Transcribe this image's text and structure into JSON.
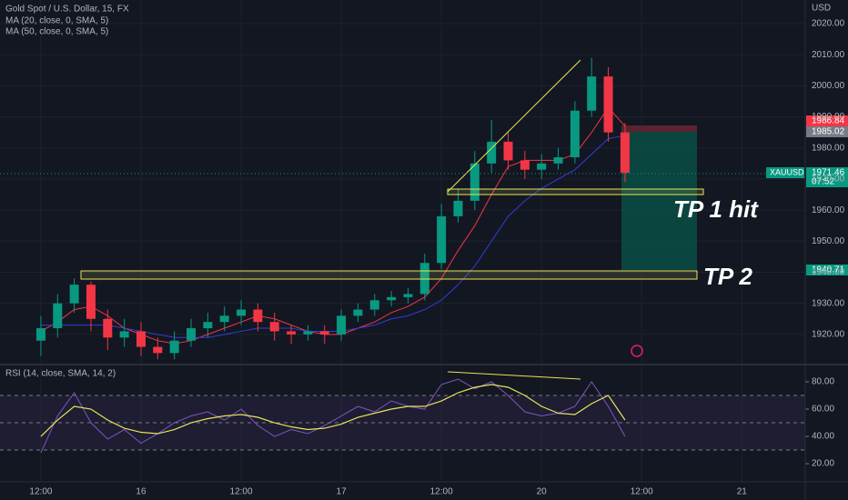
{
  "header": {
    "symbol": "Gold Spot / U.S. Dollar, 15, FX",
    "ma20": "MA (20, close, 0, SMA, 5)",
    "ma50": "MA (50, close, 0, SMA, 5)",
    "currency": "USD"
  },
  "price_labels": {
    "stop": "1986.84",
    "entry": "1985.02",
    "symbol": "XAUUSD",
    "last": "1971.46",
    "countdown": "07:52",
    "target": "1940.71"
  },
  "annotations": {
    "tp1": "TP 1 hit",
    "tp2": "TP 2"
  },
  "chart_data": [
    {
      "type": "candlestick",
      "up_color": "#089981",
      "down_color": "#f23645",
      "x": [
        12,
        14,
        16,
        18,
        20,
        22,
        24,
        26,
        28,
        30,
        32,
        34,
        36,
        38,
        40,
        42,
        44,
        46,
        48,
        50,
        52,
        54,
        56,
        58,
        60,
        62,
        64,
        66,
        68,
        70,
        72,
        74,
        76,
        78,
        80,
        82
      ],
      "open": [
        1918,
        1922,
        1930,
        1936,
        1925,
        1919,
        1921,
        1916,
        1914,
        1918,
        1922,
        1924,
        1926,
        1928,
        1924,
        1921,
        1920,
        1921,
        1920,
        1926,
        1928,
        1931,
        1932,
        1933,
        1943,
        1958,
        1963,
        1975,
        1982,
        1976,
        1973,
        1975,
        1977,
        1992,
        2003,
        1985
      ],
      "high": [
        1926,
        1933,
        1938,
        1937,
        1928,
        1925,
        1924,
        1919,
        1921,
        1925,
        1927,
        1929,
        1931,
        1930,
        1927,
        1923,
        1923,
        1923,
        1928,
        1930,
        1933,
        1934,
        1935,
        1946,
        1962,
        1967,
        1979,
        1989,
        1985,
        1979,
        1978,
        1980,
        1995,
        2009,
        2006,
        1988
      ],
      "low": [
        1913,
        1919,
        1927,
        1921,
        1915,
        1916,
        1913,
        1912,
        1912,
        1916,
        1919,
        1921,
        1923,
        1921,
        1918,
        1917,
        1918,
        1917,
        1918,
        1924,
        1926,
        1929,
        1930,
        1931,
        1941,
        1956,
        1960,
        1972,
        1973,
        1970,
        1970,
        1973,
        1975,
        1990,
        1982,
        1969
      ],
      "close": [
        1922,
        1930,
        1936,
        1925,
        1919,
        1921,
        1916,
        1914,
        1918,
        1922,
        1924,
        1926,
        1928,
        1924,
        1921,
        1920,
        1921,
        1920,
        1926,
        1928,
        1931,
        1932,
        1933,
        1943,
        1958,
        1963,
        1975,
        1982,
        1976,
        1973,
        1975,
        1977,
        1992,
        2003,
        1985,
        1972
      ],
      "overlays": [
        {
          "color": "#f23645",
          "values": [
            1921,
            1924,
            1928,
            1929,
            1926,
            1922,
            1920,
            1918,
            1917,
            1918,
            1920,
            1922,
            1924,
            1926,
            1925,
            1923,
            1921,
            1920,
            1920,
            1922,
            1924,
            1927,
            1929,
            1932,
            1938,
            1947,
            1955,
            1965,
            1974,
            1976,
            1976,
            1976,
            1978,
            1985,
            1993,
            1987
          ]
        },
        {
          "color": "#2f3fd6",
          "values": [
            1923,
            1923,
            1923,
            1923,
            1923,
            1922,
            1921,
            1920,
            1919,
            1919,
            1919,
            1920,
            1921,
            1922,
            1922,
            1922,
            1921,
            1921,
            1921,
            1922,
            1923,
            1925,
            1926,
            1928,
            1931,
            1936,
            1942,
            1950,
            1958,
            1963,
            1967,
            1970,
            1973,
            1978,
            1983,
            1984
          ]
        }
      ],
      "xlim": [
        7.1,
        103.6
      ],
      "xticks": [
        {
          "value": 12,
          "label": "12:00"
        },
        {
          "value": 24,
          "label": "16"
        },
        {
          "value": 36,
          "label": "12:00"
        },
        {
          "value": 48,
          "label": "17"
        },
        {
          "value": 60,
          "label": "12:00"
        },
        {
          "value": 72,
          "label": "20"
        },
        {
          "value": 84,
          "label": "12:00"
        },
        {
          "value": 96,
          "label": "21"
        }
      ],
      "ylim": [
        1910.6,
        2027.6
      ],
      "yticks": [
        {
          "value": 2020,
          "label": "2020.00"
        },
        {
          "value": 2010,
          "label": "2010.00"
        },
        {
          "value": 2000,
          "label": "2000.00"
        },
        {
          "value": 1990,
          "label": "1990.00"
        },
        {
          "value": 1980,
          "label": "1980.00"
        },
        {
          "value": 1970,
          "label": "1970.00"
        },
        {
          "value": 1960,
          "label": "1960.00"
        },
        {
          "value": 1950,
          "label": "1950.00"
        },
        {
          "value": 1940,
          "label": "1940.00"
        },
        {
          "value": 1930,
          "label": "1930.00"
        },
        {
          "value": 1920,
          "label": "1920.00"
        }
      ]
    },
    {
      "type": "line",
      "title": "RSI (14, close, SMA, 14, 2)",
      "color": "#7e57c2",
      "signal_color": "#e8e35a",
      "values": [
        28,
        55,
        72,
        50,
        38,
        45,
        35,
        42,
        50,
        55,
        58,
        52,
        60,
        48,
        40,
        45,
        42,
        48,
        55,
        62,
        58,
        66,
        62,
        60,
        78,
        82,
        75,
        80,
        70,
        58,
        55,
        57,
        62,
        80,
        62,
        40
      ],
      "signal": [
        40,
        52,
        62,
        60,
        52,
        46,
        43,
        42,
        45,
        50,
        53,
        55,
        56,
        54,
        50,
        47,
        45,
        46,
        49,
        54,
        57,
        60,
        62,
        62,
        66,
        72,
        76,
        78,
        76,
        70,
        62,
        57,
        56,
        64,
        70,
        52
      ],
      "levels": [
        70,
        50,
        30
      ],
      "ylim": [
        6.7,
        90
      ],
      "yticks": [
        {
          "value": 80,
          "label": "80.00"
        },
        {
          "value": 60,
          "label": "60.00"
        },
        {
          "value": 40,
          "label": "40.00"
        },
        {
          "value": 20,
          "label": "20.00"
        }
      ]
    }
  ]
}
